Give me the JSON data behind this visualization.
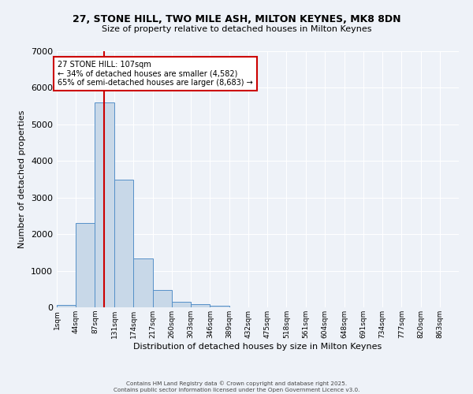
{
  "title1": "27, STONE HILL, TWO MILE ASH, MILTON KEYNES, MK8 8DN",
  "title2": "Size of property relative to detached houses in Milton Keynes",
  "xlabel": "Distribution of detached houses by size in Milton Keynes",
  "ylabel": "Number of detached properties",
  "annotation_title": "27 STONE HILL: 107sqm",
  "annotation_line1": "← 34% of detached houses are smaller (4,582)",
  "annotation_line2": "65% of semi-detached houses are larger (8,683) →",
  "property_size": 107,
  "bin_labels": [
    "1sqm",
    "44sqm",
    "87sqm",
    "131sqm",
    "174sqm",
    "217sqm",
    "260sqm",
    "303sqm",
    "346sqm",
    "389sqm",
    "432sqm",
    "475sqm",
    "518sqm",
    "561sqm",
    "604sqm",
    "648sqm",
    "691sqm",
    "734sqm",
    "777sqm",
    "820sqm",
    "863sqm"
  ],
  "bin_edges": [
    1,
    44,
    87,
    131,
    174,
    217,
    260,
    303,
    346,
    389,
    432,
    475,
    518,
    561,
    604,
    648,
    691,
    734,
    777,
    820,
    863
  ],
  "bar_values": [
    70,
    2300,
    5600,
    3480,
    1330,
    480,
    160,
    80,
    50,
    0,
    0,
    0,
    0,
    0,
    0,
    0,
    0,
    0,
    0,
    0
  ],
  "bar_color": "#c8d8e8",
  "bar_edge_color": "#5590c8",
  "red_line_color": "#cc0000",
  "annotation_box_color": "#cc0000",
  "background_color": "#eef2f8",
  "grid_color": "#ffffff",
  "ylim": [
    0,
    7000
  ],
  "footer1": "Contains HM Land Registry data © Crown copyright and database right 2025.",
  "footer2": "Contains public sector information licensed under the Open Government Licence v3.0."
}
